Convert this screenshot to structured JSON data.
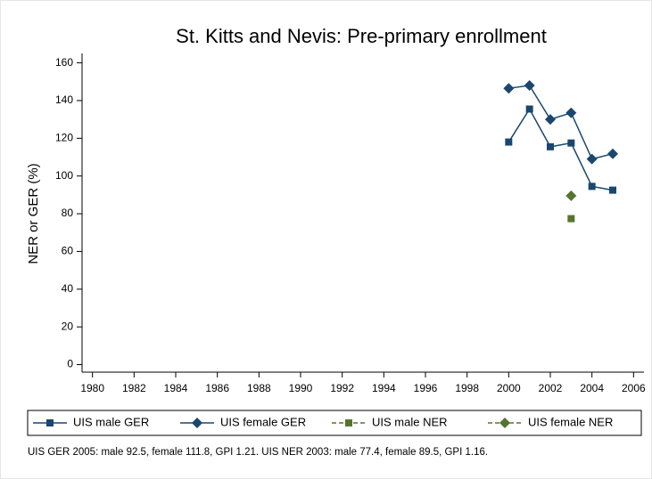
{
  "chart_data": {
    "type": "line",
    "title": "St. Kitts and Nevis: Pre-primary enrollment",
    "y_label": "NER or GER (%)",
    "note": "UIS GER 2005: male 92.5, female 111.8, GPI 1.21. UIS NER 2003: male 77.4, female 89.5, GPI 1.16.",
    "x": [
      2000,
      2001,
      2002,
      2003,
      2004,
      2005
    ],
    "series": [
      {
        "name": "UIS male GER",
        "color": "#1a476f",
        "marker": "square",
        "style": "solid",
        "values": [
          118,
          135.5,
          115.5,
          117.5,
          94.5,
          92.5
        ]
      },
      {
        "name": "UIS female GER",
        "color": "#1a476f",
        "marker": "diamond",
        "style": "solid",
        "values": [
          146.5,
          148,
          130,
          133.5,
          109,
          111.8
        ]
      },
      {
        "name": "UIS male NER",
        "color": "#55752f",
        "marker": "square",
        "style": "dashed",
        "values": [
          null,
          null,
          null,
          77.4,
          null,
          null
        ]
      },
      {
        "name": "UIS female NER",
        "color": "#55752f",
        "marker": "diamond",
        "style": "dashed",
        "values": [
          null,
          null,
          null,
          89.5,
          null,
          null
        ]
      }
    ],
    "xlim": [
      1979.5,
      2006.5
    ],
    "xticks": [
      1980,
      1982,
      1984,
      1986,
      1988,
      1990,
      1992,
      1994,
      1996,
      1998,
      2000,
      2002,
      2004,
      2006
    ],
    "ylim": [
      -4,
      165
    ],
    "yticks": [
      0,
      20,
      40,
      60,
      80,
      100,
      120,
      140,
      160
    ],
    "grid": false,
    "legend": "bottom"
  }
}
